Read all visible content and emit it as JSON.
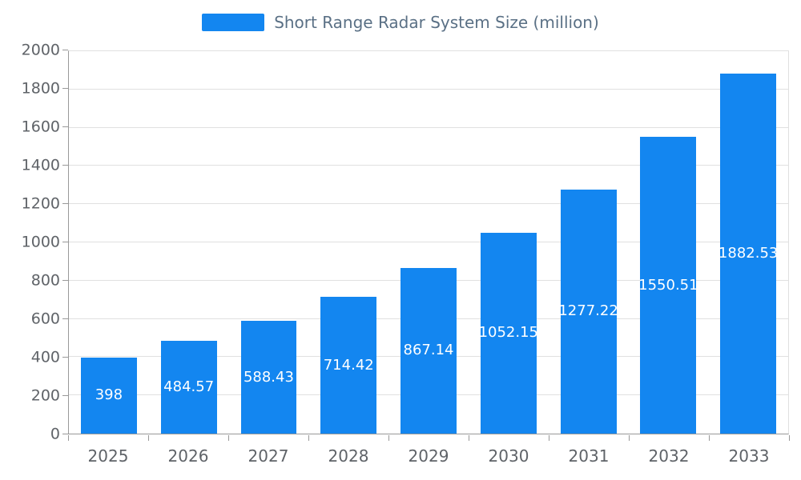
{
  "legend": {
    "label": "Short Range Radar System Size (million)"
  },
  "chart_data": {
    "type": "bar",
    "title": "Short Range Radar System Size (million)",
    "categories": [
      "2025",
      "2026",
      "2027",
      "2028",
      "2029",
      "2030",
      "2031",
      "2032",
      "2033"
    ],
    "values": [
      398,
      484.57,
      588.43,
      714.42,
      867.14,
      1052.15,
      1277.22,
      1550.51,
      1882.53
    ],
    "value_labels": [
      "398",
      "484.57",
      "588.43",
      "714.42",
      "867.14",
      "1052.15",
      "1277.22",
      "1550.51",
      "1882.53"
    ],
    "xlabel": "",
    "ylabel": "",
    "ylim": [
      0,
      2000
    ],
    "yticks": [
      0,
      200,
      400,
      600,
      800,
      1000,
      1200,
      1400,
      1600,
      1800,
      2000
    ],
    "grid": true,
    "legend_position": "top-center",
    "value_labels_placement": "inside-middle"
  },
  "colors": {
    "bar": "#1386f0",
    "grid": "#e0e0e0",
    "axis": "#999999",
    "tick_text": "#5f6368",
    "legend_text": "#5a7085",
    "value_label": "#ffffff",
    "background": "#ffffff"
  }
}
